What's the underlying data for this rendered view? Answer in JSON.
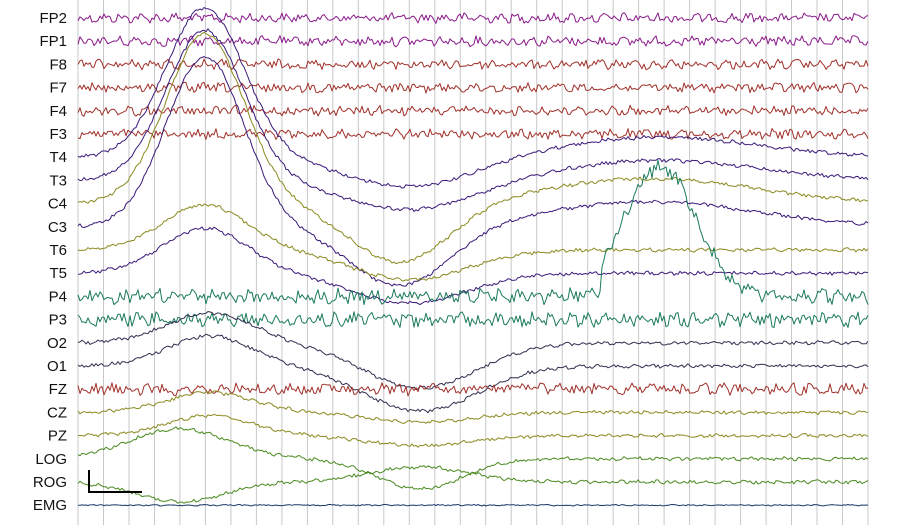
{
  "chart_data": {
    "type": "line",
    "title": "",
    "xlabel": "",
    "ylabel": "",
    "grid": "vertical",
    "legend": "none",
    "channels": [
      {
        "name": "FP2",
        "color": "#8a1a8a"
      },
      {
        "name": "FP1",
        "color": "#8a1a8a"
      },
      {
        "name": "F8",
        "color": "#a0302a"
      },
      {
        "name": "F7",
        "color": "#a0302a"
      },
      {
        "name": "F4",
        "color": "#a0302a"
      },
      {
        "name": "F3",
        "color": "#a0302a"
      },
      {
        "name": "T4",
        "color": "#3a1a7a"
      },
      {
        "name": "T3",
        "color": "#3a1a7a"
      },
      {
        "name": "C4",
        "color": "#8a8a20"
      },
      {
        "name": "C3",
        "color": "#3a1a7a"
      },
      {
        "name": "T6",
        "color": "#8a8a20"
      },
      {
        "name": "T5",
        "color": "#3a1a7a"
      },
      {
        "name": "P4",
        "color": "#1a7a5a"
      },
      {
        "name": "P3",
        "color": "#1a7a5a"
      },
      {
        "name": "O2",
        "color": "#303050"
      },
      {
        "name": "O1",
        "color": "#303050"
      },
      {
        "name": "FZ",
        "color": "#a0302a"
      },
      {
        "name": "CZ",
        "color": "#8a8a20"
      },
      {
        "name": "PZ",
        "color": "#8a8a20"
      },
      {
        "name": "LOG",
        "color": "#4a8a20"
      },
      {
        "name": "ROG",
        "color": "#4a8a20"
      },
      {
        "name": "EMG",
        "color": "#1a3a6a"
      }
    ]
  }
}
